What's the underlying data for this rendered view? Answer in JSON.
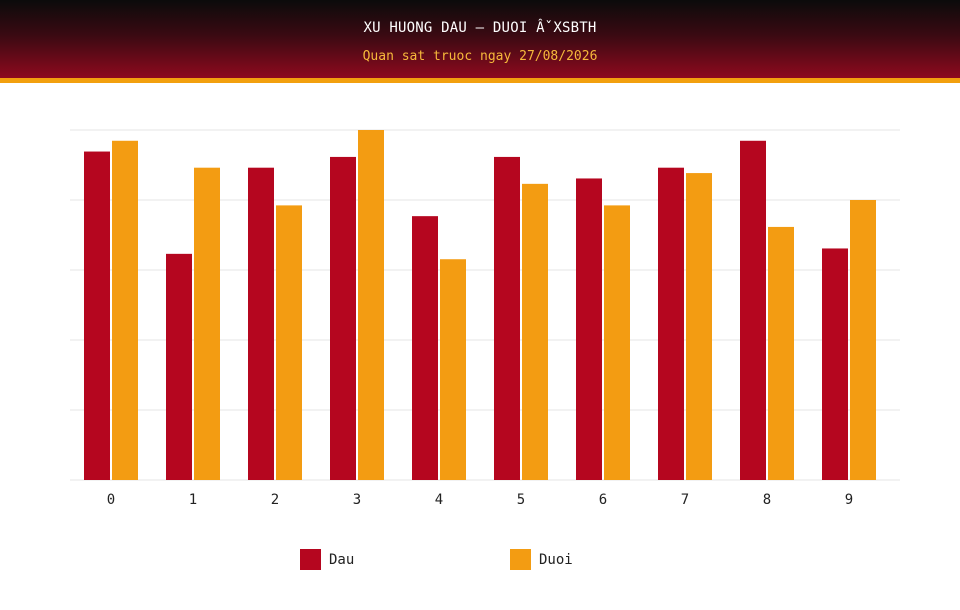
{
  "header": {
    "title": "XU HUONG DAU – DUOI Â̌ XSBTH",
    "subtitle": "Quan sat truoc ngay 27/08/2026"
  },
  "colors": {
    "dau": "#b5061f",
    "duoi": "#f39c12",
    "grid": "#e6e6e6"
  },
  "chart_data": {
    "type": "bar",
    "title": "XU HUONG DAU – DUOI Â̌ XSBTH",
    "subtitle": "Quan sat truoc ngay 27/08/2026",
    "categories": [
      "0",
      "1",
      "2",
      "3",
      "4",
      "5",
      "6",
      "7",
      "8",
      "9"
    ],
    "series": [
      {
        "name": "Dau",
        "values": [
          61,
          42,
          58,
          60,
          49,
          60,
          56,
          58,
          63,
          43
        ]
      },
      {
        "name": "Duoi",
        "values": [
          63,
          58,
          51,
          65,
          41,
          55,
          51,
          57,
          47,
          52
        ]
      }
    ],
    "ylim": [
      0,
      65
    ],
    "grid": true,
    "y_tick_labels_shown": false,
    "legend": "bottom"
  }
}
